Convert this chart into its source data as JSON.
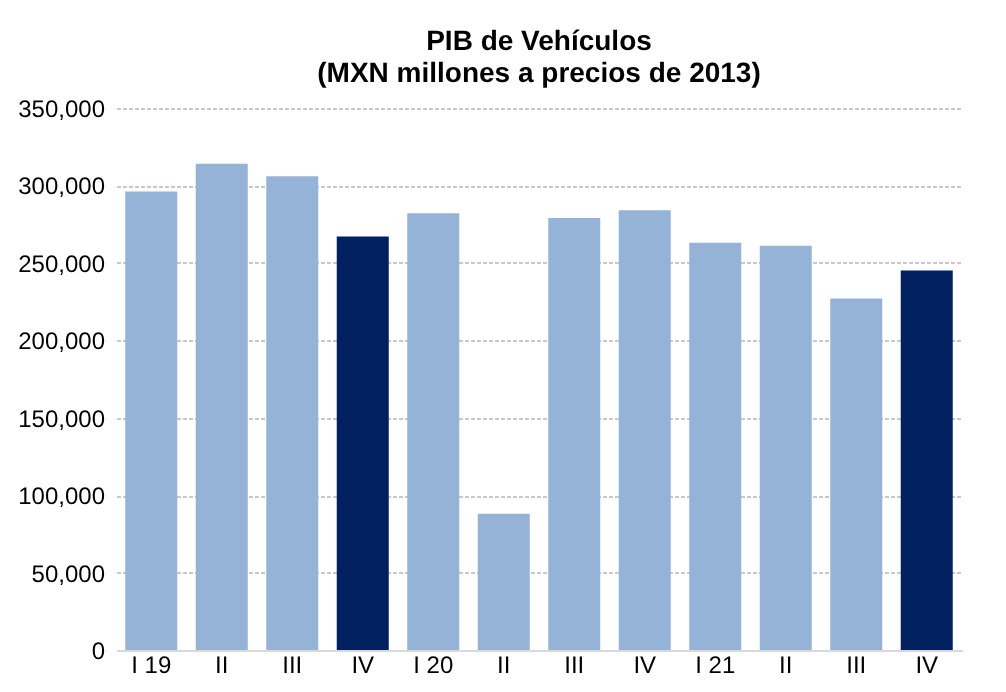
{
  "chart_data": {
    "type": "bar",
    "title": "PIB de Vehículos\n(MXN millones a precios de 2013)",
    "categories": [
      "I 19",
      "II",
      "III",
      "IV",
      "I 20",
      "II",
      "III",
      "IV",
      "I 21",
      "II",
      "III",
      "IV"
    ],
    "values": [
      296000,
      314000,
      306000,
      267000,
      282000,
      88000,
      279000,
      284000,
      263000,
      261000,
      227000,
      245000
    ],
    "colors": [
      "#95b3d7",
      "#95b3d7",
      "#95b3d7",
      "#002060",
      "#95b3d7",
      "#95b3d7",
      "#95b3d7",
      "#95b3d7",
      "#95b3d7",
      "#95b3d7",
      "#95b3d7",
      "#002060"
    ],
    "ylim": [
      0,
      350000
    ],
    "yticks": [
      0,
      {
        "value": 50000,
        "label": "50,000"
      },
      {
        "value": 100000,
        "label": "100,000"
      },
      {
        "value": 150000,
        "label": "150,000"
      },
      {
        "value": 200000,
        "label": "200,000"
      },
      {
        "value": 250000,
        "label": "250,000"
      },
      {
        "value": 300000,
        "label": "300,000"
      },
      {
        "value": 350000,
        "label": "350,000"
      }
    ],
    "grid": "y"
  }
}
